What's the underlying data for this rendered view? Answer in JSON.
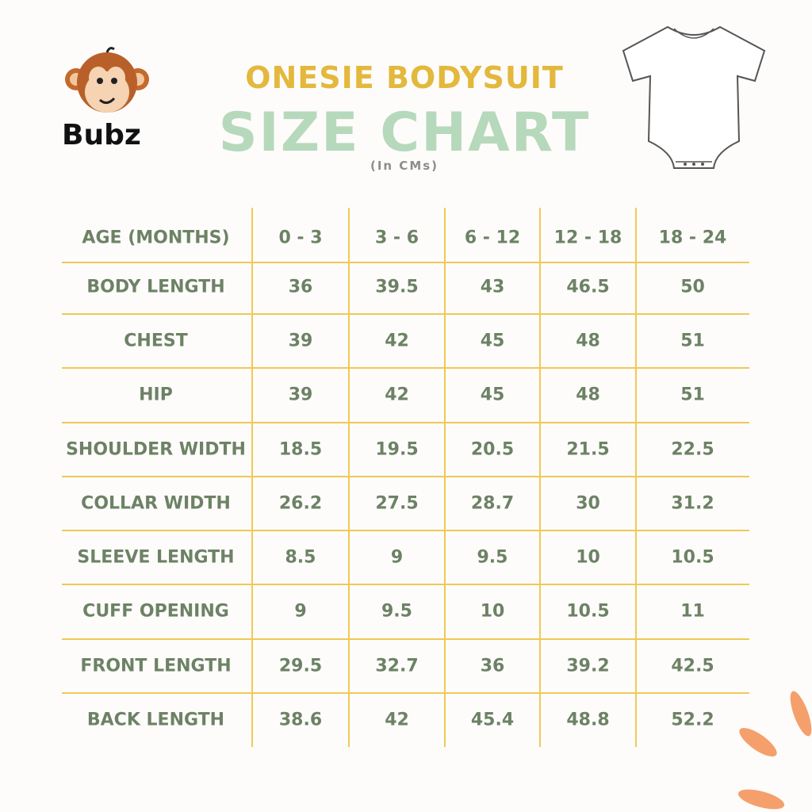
{
  "header": {
    "brand": "Bubz",
    "subtitle": "ONESIE BODYSUIT",
    "title": "SIZE CHART",
    "unit": "(In CMs)"
  },
  "table": {
    "columns": [
      "AGE (MONTHS)",
      "0 - 3",
      "3 - 6",
      "6 - 12",
      "12 - 18",
      "18 - 24"
    ],
    "rows": [
      [
        "BODY LENGTH",
        "36",
        "39.5",
        "43",
        "46.5",
        "50"
      ],
      [
        "CHEST",
        "39",
        "42",
        "45",
        "48",
        "51"
      ],
      [
        "HIP",
        "39",
        "42",
        "45",
        "48",
        "51"
      ],
      [
        "SHOULDER WIDTH",
        "18.5",
        "19.5",
        "20.5",
        "21.5",
        "22.5"
      ],
      [
        "COLLAR WIDTH",
        "26.2",
        "27.5",
        "28.7",
        "30",
        "31.2"
      ],
      [
        "SLEEVE LENGTH",
        "8.5",
        "9",
        "9.5",
        "10",
        "10.5"
      ],
      [
        "CUFF OPENING",
        "9",
        "9.5",
        "10",
        "10.5",
        "11"
      ],
      [
        "FRONT LENGTH",
        "29.5",
        "32.7",
        "36",
        "39.2",
        "42.5"
      ],
      [
        "BACK LENGTH",
        "38.6",
        "42",
        "45.4",
        "48.8",
        "52.2"
      ]
    ]
  }
}
